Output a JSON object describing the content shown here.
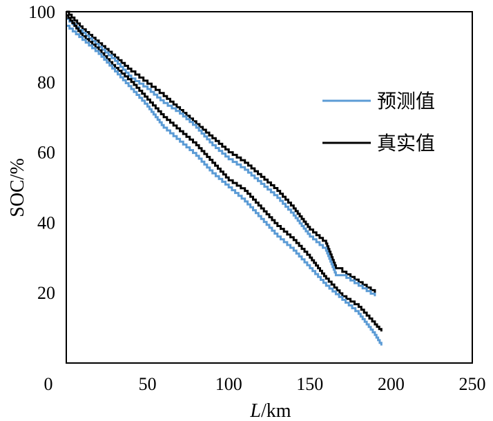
{
  "chart_data": {
    "type": "line",
    "title": "",
    "xlabel_italic": "L",
    "xlabel_unit": "/km",
    "ylabel": "SOC/%",
    "xlim": [
      0,
      250
    ],
    "ylim": [
      0,
      100
    ],
    "x_ticks": [
      "0",
      "50",
      "100",
      "150",
      "200",
      "250"
    ],
    "y_ticks": [
      "20",
      "40",
      "60",
      "80",
      "100"
    ],
    "grid": false,
    "legend_position": "right",
    "legend": [
      {
        "label": "预测值",
        "color": "#5B9BD5"
      },
      {
        "label": "真实值",
        "color": "#000000"
      }
    ],
    "series": [
      {
        "name": "真实值",
        "color": "#000000",
        "group": "upper",
        "x": [
          0,
          10,
          20,
          30,
          40,
          50,
          60,
          70,
          80,
          90,
          100,
          110,
          120,
          130,
          140,
          150,
          160,
          166,
          170,
          180,
          190
        ],
        "y": [
          100,
          95,
          91,
          87,
          83,
          79.5,
          76,
          72,
          68,
          64,
          60,
          57,
          53,
          49,
          44,
          38,
          34,
          27,
          26,
          23,
          20
        ]
      },
      {
        "name": "预测值",
        "color": "#5B9BD5",
        "group": "upper",
        "x": [
          0,
          10,
          20,
          30,
          40,
          50,
          60,
          70,
          80,
          90,
          100,
          110,
          120,
          130,
          140,
          150,
          160,
          166,
          170,
          180,
          190
        ],
        "y": [
          98,
          94,
          90,
          86,
          81,
          78,
          74,
          71,
          67,
          62,
          58,
          55,
          51,
          47,
          42,
          36,
          32,
          25,
          25,
          22,
          19
        ]
      },
      {
        "name": "真实值",
        "color": "#000000",
        "group": "lower",
        "x": [
          0,
          10,
          20,
          30,
          40,
          50,
          60,
          70,
          80,
          90,
          100,
          110,
          120,
          130,
          140,
          150,
          160,
          170,
          180,
          190,
          194
        ],
        "y": [
          99,
          93,
          89,
          84,
          80,
          75,
          70,
          66,
          62,
          57,
          52,
          49,
          44,
          39,
          35,
          30,
          24,
          19,
          16,
          11,
          9
        ]
      },
      {
        "name": "预测值",
        "color": "#5B9BD5",
        "group": "lower",
        "x": [
          0,
          10,
          20,
          30,
          40,
          50,
          60,
          70,
          80,
          90,
          100,
          110,
          120,
          130,
          140,
          150,
          160,
          170,
          180,
          190,
          194
        ],
        "y": [
          96,
          92,
          88,
          83,
          78,
          73,
          67,
          63,
          59,
          54,
          50,
          46,
          41,
          36,
          32,
          27,
          22,
          18,
          14,
          8,
          5
        ]
      }
    ]
  }
}
